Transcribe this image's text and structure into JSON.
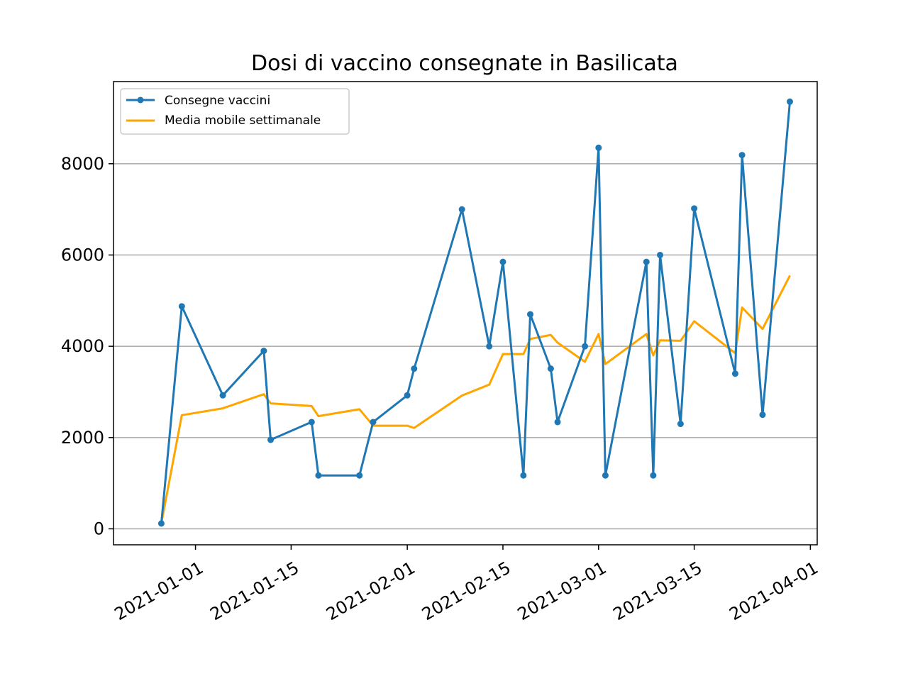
{
  "chart_data": {
    "type": "line",
    "title": "Dosi di vaccino consegnate in Basilicata",
    "xlabel": "",
    "ylabel": "",
    "grid": "y",
    "legend_position": "upper left",
    "xlim": [
      "2020-12-20",
      "2021-04-02"
    ],
    "ylim": [
      -350,
      9800
    ],
    "x_ticks": [
      "2021-01-01",
      "2021-01-15",
      "2021-02-01",
      "2021-02-15",
      "2021-03-01",
      "2021-03-15",
      "2021-04-01"
    ],
    "y_ticks": [
      0,
      2000,
      4000,
      6000,
      8000
    ],
    "colors": {
      "deliveries": "#1f77b4",
      "moving_average": "#ffa500"
    },
    "series": [
      {
        "name": "Consegne vaccini",
        "marker": "dot",
        "x": [
          "2020-12-27",
          "2020-12-30",
          "2021-01-05",
          "2021-01-11",
          "2021-01-12",
          "2021-01-18",
          "2021-01-19",
          "2021-01-25",
          "2021-01-27",
          "2021-02-01",
          "2021-02-02",
          "2021-02-09",
          "2021-02-13",
          "2021-02-15",
          "2021-02-18",
          "2021-02-19",
          "2021-02-22",
          "2021-02-23",
          "2021-02-27",
          "2021-03-01",
          "2021-03-02",
          "2021-03-08",
          "2021-03-09",
          "2021-03-10",
          "2021-03-13",
          "2021-03-15",
          "2021-03-21",
          "2021-03-22",
          "2021-03-25",
          "2021-03-29"
        ],
        "values": [
          117,
          4875,
          2925,
          3900,
          1950,
          2340,
          1170,
          1170,
          2340,
          2925,
          3510,
          7000,
          4000,
          5850,
          1170,
          4700,
          3510,
          2340,
          4000,
          8350,
          1170,
          5850,
          1170,
          6000,
          2300,
          7020,
          3400,
          8190,
          2500,
          9360
        ]
      },
      {
        "name": "Media mobile settimanale",
        "marker": "none",
        "x": [
          "2020-12-27",
          "2020-12-30",
          "2021-01-05",
          "2021-01-11",
          "2021-01-12",
          "2021-01-18",
          "2021-01-19",
          "2021-01-25",
          "2021-01-27",
          "2021-02-01",
          "2021-02-02",
          "2021-02-09",
          "2021-02-13",
          "2021-02-15",
          "2021-02-18",
          "2021-02-19",
          "2021-02-22",
          "2021-02-23",
          "2021-02-27",
          "2021-03-01",
          "2021-03-02",
          "2021-03-08",
          "2021-03-09",
          "2021-03-10",
          "2021-03-13",
          "2021-03-15",
          "2021-03-21",
          "2021-03-22",
          "2021-03-25",
          "2021-03-29"
        ],
        "values": [
          117,
          2490,
          2640,
          2950,
          2750,
          2690,
          2470,
          2620,
          2260,
          2260,
          2210,
          2920,
          3160,
          3830,
          3830,
          4160,
          4250,
          4080,
          3660,
          4270,
          3610,
          4270,
          3800,
          4130,
          4120,
          4550,
          3850,
          4850,
          4380,
          5550
        ]
      }
    ]
  }
}
